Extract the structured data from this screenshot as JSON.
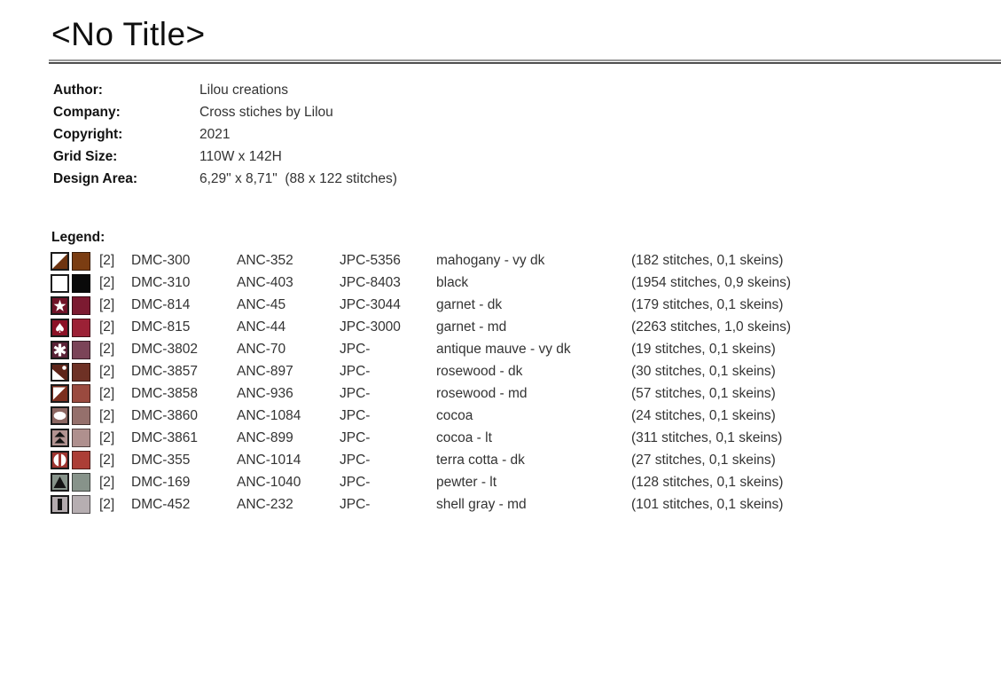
{
  "page": {
    "title": "<No Title>"
  },
  "meta": {
    "rows": [
      {
        "label": "Author:",
        "value": "Lilou creations"
      },
      {
        "label": "Company:",
        "value": "Cross stiches by Lilou"
      },
      {
        "label": "Copyright:",
        "value": "2021"
      },
      {
        "label": "Grid Size:",
        "value": "110W x 142H"
      },
      {
        "label": "Design Area:",
        "value": "6,29\" x 8,71\"  (88 x 122 stitches)"
      }
    ]
  },
  "legend": {
    "heading": "Legend:",
    "rows": [
      {
        "symbol": {
          "type": "half-diagonal",
          "bg": "#6E3410",
          "fg": "#FFFFFF"
        },
        "color": "#7B3D12",
        "strands": "[2]",
        "dmc": "DMC-300",
        "anc": "ANC-352",
        "jpc": "JPC-5356",
        "name": "mahogany - vy dk",
        "usage": "(182 stitches, 0,1 skeins)"
      },
      {
        "symbol": {
          "type": "blank",
          "bg": "#FFFFFF",
          "fg": "#111111"
        },
        "color": "#0A0A0A",
        "strands": "[2]",
        "dmc": "DMC-310",
        "anc": "ANC-403",
        "jpc": "JPC-8403",
        "name": "black",
        "usage": "(1954 stitches, 0,9 skeins)"
      },
      {
        "symbol": {
          "type": "star",
          "bg": "#701328",
          "fg": "#FFFFFF"
        },
        "color": "#7C1A31",
        "strands": "[2]",
        "dmc": "DMC-814",
        "anc": "ANC-45",
        "jpc": "JPC-3044",
        "name": "garnet - dk",
        "usage": "(179 stitches, 0,1 skeins)"
      },
      {
        "symbol": {
          "type": "spade",
          "bg": "#8C1126",
          "fg": "#FFFFFF"
        },
        "color": "#9C2136",
        "strands": "[2]",
        "dmc": "DMC-815",
        "anc": "ANC-44",
        "jpc": "JPC-3000",
        "name": "garnet - md",
        "usage": "(2263 stitches, 1,0 skeins)"
      },
      {
        "symbol": {
          "type": "asterisk",
          "bg": "#5A2136",
          "fg": "#FFFFFF"
        },
        "color": "#7B4458",
        "strands": "[2]",
        "dmc": "DMC-3802",
        "anc": "ANC-70",
        "jpc": "JPC-",
        "name": "antique mauve - vy dk",
        "usage": "(19 stitches, 0,1 skeins)"
      },
      {
        "symbol": {
          "type": "mountain-dot",
          "bg": "#5E2419",
          "fg": "#FFFFFF"
        },
        "color": "#6E3125",
        "strands": "[2]",
        "dmc": "DMC-3857",
        "anc": "ANC-897",
        "jpc": "JPC-",
        "name": "rosewood - dk",
        "usage": "(30 stitches, 0,1 skeins)"
      },
      {
        "symbol": {
          "type": "triangle-tl",
          "bg": "#7C2F1F",
          "fg": "#FFFFFF"
        },
        "color": "#9A4A3F",
        "strands": "[2]",
        "dmc": "DMC-3858",
        "anc": "ANC-936",
        "jpc": "JPC-",
        "name": "rosewood - md",
        "usage": "(57 stitches, 0,1 skeins)"
      },
      {
        "symbol": {
          "type": "ellipse",
          "bg": "#8C6762",
          "fg": "#FFFFFF"
        },
        "color": "#95706C",
        "strands": "[2]",
        "dmc": "DMC-3860",
        "anc": "ANC-1084",
        "jpc": "JPC-",
        "name": "cocoa",
        "usage": "(24 stitches, 0,1 skeins)"
      },
      {
        "symbol": {
          "type": "double-triangle-up",
          "bg": "#B29391",
          "fg": "#141414"
        },
        "color": "#AF908E",
        "strands": "[2]",
        "dmc": "DMC-3861",
        "anc": "ANC-899",
        "jpc": "JPC-",
        "name": "cocoa - lt",
        "usage": "(311 stitches, 0,1 skeins)"
      },
      {
        "symbol": {
          "type": "split-circle",
          "bg": "#9F3530",
          "fg": "#FFFFFF"
        },
        "color": "#AC3E36",
        "strands": "[2]",
        "dmc": "DMC-355",
        "anc": "ANC-1014",
        "jpc": "JPC-",
        "name": "terra cotta - dk",
        "usage": "(27 stitches, 0,1 skeins)"
      },
      {
        "symbol": {
          "type": "triangle-up",
          "bg": "#87938A",
          "fg": "#141414"
        },
        "color": "#87938A",
        "strands": "[2]",
        "dmc": "DMC-169",
        "anc": "ANC-1040",
        "jpc": "JPC-",
        "name": "pewter - lt",
        "usage": "(128 stitches, 0,1 skeins)"
      },
      {
        "symbol": {
          "type": "vertical-bar",
          "bg": "#B3ABAE",
          "fg": "#141414"
        },
        "color": "#B6AEB1",
        "strands": "[2]",
        "dmc": "DMC-452",
        "anc": "ANC-232",
        "jpc": "JPC-",
        "name": "shell gray - md",
        "usage": "(101 stitches, 0,1 skeins)"
      }
    ]
  }
}
